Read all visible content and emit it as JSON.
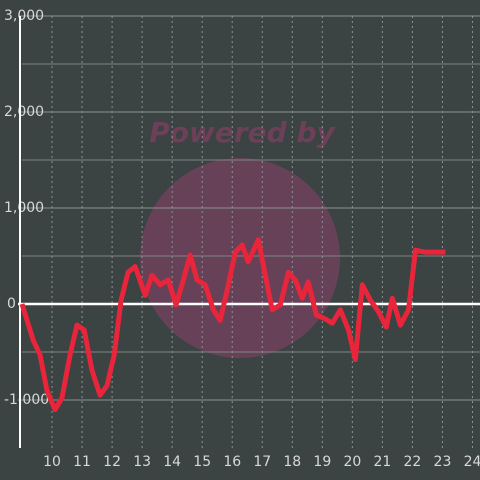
{
  "chart_data": {
    "type": "line",
    "watermark": "Powered by",
    "x": [
      9,
      9.17,
      9.37,
      9.6,
      9.83,
      10.1,
      10.33,
      10.6,
      10.83,
      11.07,
      11.33,
      11.6,
      11.83,
      12.07,
      12.3,
      12.53,
      12.77,
      13.1,
      13.33,
      13.6,
      13.87,
      14.13,
      14.37,
      14.6,
      14.83,
      15.1,
      15.37,
      15.6,
      15.87,
      16.1,
      16.33,
      16.53,
      16.87,
      17.1,
      17.33,
      17.6,
      17.87,
      18.1,
      18.33,
      18.53,
      18.8,
      19.07,
      19.33,
      19.6,
      19.87,
      20.1,
      20.33,
      20.6,
      20.87,
      21.13,
      21.33,
      21.6,
      21.87,
      22.1,
      22.43,
      23.1
    ],
    "series": [
      {
        "color": "#e8253a",
        "values": [
          0,
          -170,
          -375,
          -530,
          -900,
          -1100,
          -980,
          -530,
          -220,
          -270,
          -690,
          -950,
          -850,
          -530,
          40,
          330,
          390,
          90,
          300,
          200,
          250,
          -10,
          250,
          510,
          250,
          200,
          -60,
          -170,
          200,
          540,
          615,
          440,
          670,
          300,
          -60,
          -10,
          330,
          250,
          60,
          230,
          -115,
          -150,
          -200,
          -60,
          -270,
          -580,
          200,
          40,
          -80,
          -240,
          60,
          -220,
          -60,
          560,
          540,
          540
        ]
      }
    ],
    "xlim": [
      9,
      24.25
    ],
    "xticks": [
      10,
      11,
      12,
      13,
      14,
      15,
      16,
      17,
      18,
      19,
      20,
      21,
      22,
      23,
      24
    ],
    "ylim": [
      -1500,
      3000
    ],
    "yticks": [
      {
        "value": -1000,
        "label": "-1,000"
      },
      0,
      {
        "value": 1000,
        "label": "1,000"
      },
      {
        "value": 2000,
        "label": "2,000"
      },
      {
        "value": 3000,
        "label": "3,000"
      }
    ],
    "y_minor_ticks": [
      -500,
      500,
      1500,
      2500
    ],
    "grid": true
  }
}
